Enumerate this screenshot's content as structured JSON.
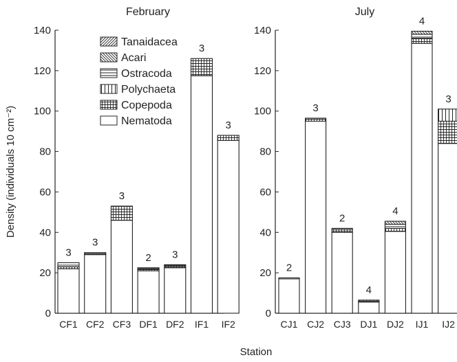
{
  "chart_data": {
    "type": "bar",
    "stacked": true,
    "ylabel": "Density (individuals 10 cm⁻²)",
    "xlabel": "Station",
    "ylim": [
      0,
      140
    ],
    "yticks": [
      0,
      20,
      40,
      60,
      80,
      100,
      120,
      140
    ],
    "legend": {
      "placement": "top-left (February panel)",
      "entries": [
        "Tanaidacea",
        "Acari",
        "Ostracoda",
        "Polychaeta",
        "Copepoda",
        "Nematoda"
      ]
    },
    "patterns": {
      "Nematoda": "plain",
      "Copepoda": "grid",
      "Polychaeta": "vertical-lines",
      "Ostracoda": "horizontal-lines",
      "Acari": "back-diagonal",
      "Tanaidacea": "forward-diagonal"
    },
    "panels": [
      {
        "title": "February",
        "categories": [
          "CF1",
          "CF2",
          "CF3",
          "DF1",
          "DF2",
          "IF1",
          "IF2"
        ],
        "top_labels": [
          "3",
          "3",
          "3",
          "2",
          "3",
          "3",
          "3"
        ],
        "series": [
          {
            "name": "Nematoda",
            "values": [
              22,
              29,
              46,
              21,
              22.5,
              117.5,
              85.5
            ]
          },
          {
            "name": "Copepoda",
            "values": [
              1,
              0.5,
              7,
              1,
              1,
              8.5,
              2.5
            ]
          },
          {
            "name": "Polychaeta",
            "values": [
              0,
              0,
              0,
              0,
              0,
              0,
              0
            ]
          },
          {
            "name": "Ostracoda",
            "values": [
              2,
              0.5,
              0,
              0.5,
              0.5,
              0,
              0
            ]
          },
          {
            "name": "Acari",
            "values": [
              0,
              0,
              0,
              0,
              0,
              0,
              0
            ]
          },
          {
            "name": "Tanaidacea",
            "values": [
              0,
              0,
              0,
              0,
              0,
              0,
              0
            ]
          }
        ]
      },
      {
        "title": "July",
        "categories": [
          "CJ1",
          "CJ2",
          "CJ3",
          "DJ1",
          "DJ2",
          "IJ1",
          "IJ2"
        ],
        "top_labels": [
          "2",
          "3",
          "2",
          "4",
          "4",
          "4",
          "3"
        ],
        "series": [
          {
            "name": "Nematoda",
            "values": [
              17,
              95,
              40,
              5.5,
              40.5,
              133.5,
              84
            ]
          },
          {
            "name": "Copepoda",
            "values": [
              0,
              1,
              1.5,
              0.5,
              1.5,
              2.5,
              11
            ]
          },
          {
            "name": "Polychaeta",
            "values": [
              0,
              0,
              0,
              0.5,
              0,
              0,
              6
            ]
          },
          {
            "name": "Ostracoda",
            "values": [
              0.5,
              0.5,
              0.5,
              0,
              2,
              2,
              0
            ]
          },
          {
            "name": "Acari",
            "values": [
              0,
              0,
              0,
              0,
              1.5,
              1.5,
              0
            ]
          },
          {
            "name": "Tanaidacea",
            "values": [
              0,
              0,
              0,
              0,
              0,
              0,
              0
            ]
          }
        ]
      }
    ]
  }
}
